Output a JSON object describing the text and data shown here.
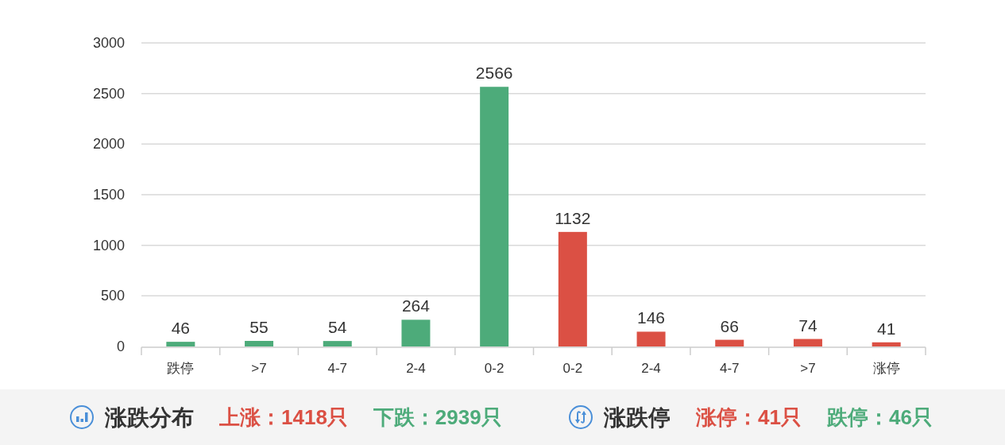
{
  "chart_data": {
    "type": "bar",
    "categories": [
      "跌停",
      ">7",
      "4-7",
      "2-4",
      "0-2",
      "0-2",
      "2-4",
      "4-7",
      ">7",
      "涨停"
    ],
    "values": [
      46,
      55,
      54,
      264,
      2566,
      1132,
      146,
      66,
      74,
      41
    ],
    "colors": [
      "#4dab7a",
      "#4dab7a",
      "#4dab7a",
      "#4dab7a",
      "#4dab7a",
      "#db5044",
      "#db5044",
      "#db5044",
      "#db5044",
      "#db5044"
    ],
    "ylim": [
      0,
      3000
    ],
    "yticks": [
      0,
      500,
      1000,
      1500,
      2000,
      2500,
      3000
    ],
    "grid": "y",
    "data_labels": true,
    "annotations": [
      "涨跌分布",
      "上涨：1418只",
      "下跌：2939只",
      "涨跌停",
      "涨停：41只",
      "跌停：46只"
    ]
  }
}
